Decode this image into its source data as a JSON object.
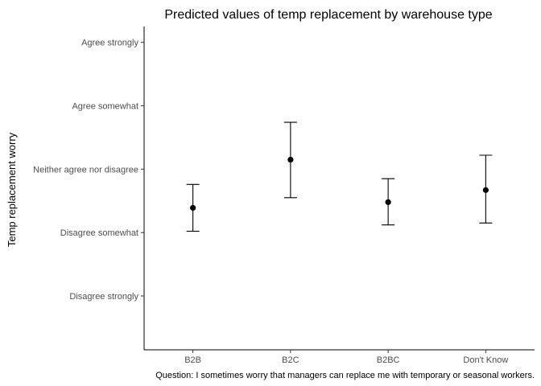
{
  "chart_data": {
    "type": "scatter",
    "title": "Predicted values of temp replacement by warehouse type",
    "xlabel": "",
    "ylabel": "Temp replacement worry",
    "caption": "Question: I sometimes worry that managers can replace me with temporary or seasonal workers.",
    "categories": [
      "B2B",
      "B2C",
      "B2BC",
      "Don't Know"
    ],
    "ytick_values": [
      1,
      2,
      3,
      4,
      5
    ],
    "ytick_labels": [
      "Disagree strongly",
      "Disagree somewhat",
      "Neither agree nor disagree",
      "Agree somewhat",
      "Agree strongly"
    ],
    "ylim": [
      0.15,
      5.25
    ],
    "series": [
      {
        "values": [
          2.39,
          3.15,
          2.48,
          2.67
        ],
        "lower": [
          2.02,
          2.55,
          2.12,
          2.15
        ],
        "upper": [
          2.76,
          3.74,
          2.85,
          3.22
        ]
      }
    ],
    "grid": false,
    "legend": "none"
  }
}
